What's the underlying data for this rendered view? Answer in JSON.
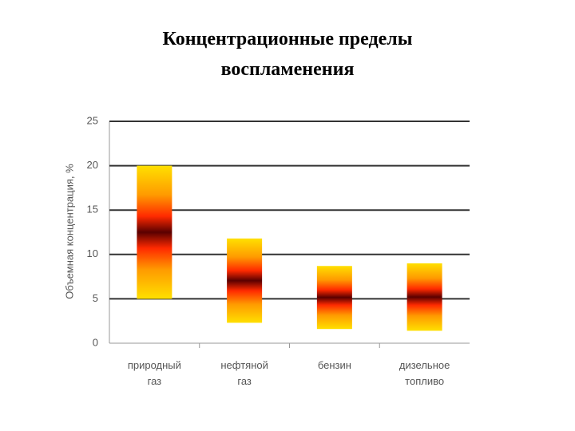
{
  "chart_data": {
    "type": "range-bar",
    "title": "Концентрационные пределы воспламенения",
    "y_label": "Объемная концентрация, %",
    "categories": [
      "природный газ",
      "нефтяной газ",
      "бензин",
      "дизельное топливо"
    ],
    "lower": [
      5,
      2.3,
      1.6,
      1.4
    ],
    "upper": [
      20,
      11.8,
      8.7,
      9
    ],
    "ylim": [
      0,
      25
    ],
    "yticks": [
      0,
      5,
      10,
      15,
      20,
      25
    ],
    "grid": true
  }
}
